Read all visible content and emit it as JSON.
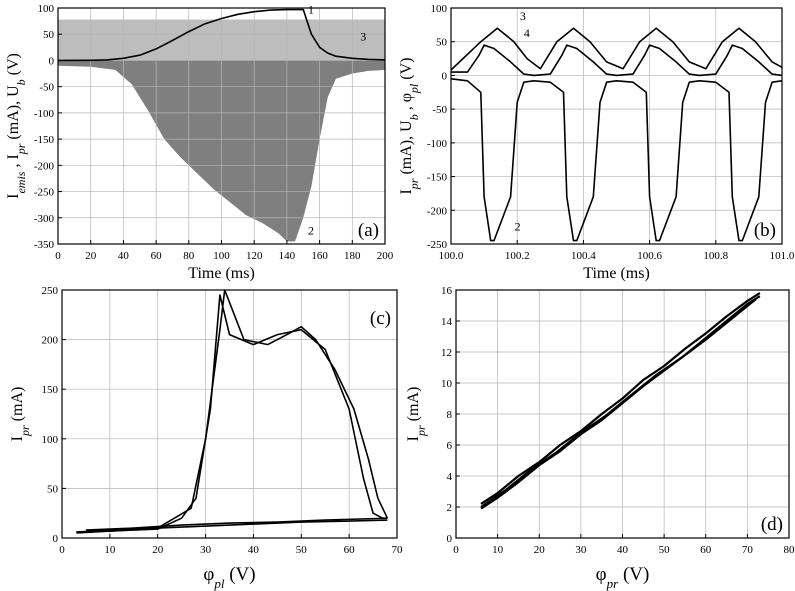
{
  "chart_data": [
    {
      "panel": "(a)",
      "type": "line",
      "ylabel": {
        "parts": [
          "I",
          "emis",
          " , I",
          "pr",
          " (mA), U",
          "b",
          " (V)"
        ]
      },
      "xlabel": "Time (ms)",
      "xlim": [
        0,
        200
      ],
      "ylim": [
        -350,
        100
      ],
      "xticks": [
        "0",
        "20",
        "40",
        "60",
        "80",
        "100",
        "120",
        "140",
        "160",
        "180",
        "200"
      ],
      "yticks": [
        "-350",
        "-300",
        "-250",
        "-200",
        "-150",
        "-100",
        "-50",
        "0",
        "50",
        "100"
      ],
      "grid": true,
      "annotations": [
        "1",
        "2",
        "3"
      ],
      "series": [
        {
          "x": [
            0,
            20,
            30,
            40,
            50,
            60,
            70,
            80,
            90,
            100,
            110,
            120,
            130,
            140,
            145,
            150,
            155,
            160,
            165,
            170,
            180,
            190,
            200
          ],
          "y": [
            0,
            0.3,
            1,
            4,
            10,
            22,
            38,
            55,
            70,
            80,
            88,
            93,
            96,
            97,
            97,
            97,
            50,
            25,
            14,
            8,
            4,
            2,
            1
          ]
        },
        {
          "x": [
            0,
            20,
            35,
            45,
            55,
            65,
            75,
            85,
            95,
            105,
            115,
            125,
            135,
            140,
            145,
            150,
            155,
            160,
            165,
            170,
            180,
            190,
            200
          ],
          "y": [
            -10,
            -12,
            -18,
            -45,
            -95,
            -150,
            -185,
            -215,
            -245,
            -270,
            -295,
            -310,
            -330,
            -345,
            -345,
            -300,
            -240,
            -150,
            -70,
            -35,
            -25,
            -20,
            -18
          ]
        },
        {
          "x": [
            0,
            200
          ],
          "y": [
            76,
            76
          ]
        }
      ]
    },
    {
      "panel": "(b)",
      "type": "line",
      "ylabel": {
        "parts": [
          "I",
          "pr",
          " (mA), U",
          "b",
          " , φ",
          "pl",
          " (V)"
        ]
      },
      "xlabel": "Time (ms)",
      "xlim": [
        100.0,
        101.0
      ],
      "ylim": [
        -250,
        100
      ],
      "xticks": [
        "100.0",
        "100.2",
        "100.4",
        "100.6",
        "100.8",
        "101.0"
      ],
      "yticks": [
        "-250",
        "-200",
        "-150",
        "-100",
        "-50",
        "0",
        "50",
        "100"
      ],
      "grid": true,
      "annotations": [
        "2",
        "3",
        "4"
      ],
      "series": [
        {
          "x": [
            100.0,
            100.05,
            100.09,
            100.1,
            100.12,
            100.13,
            100.18,
            100.2,
            100.22,
            100.25,
            100.3,
            100.34,
            100.35,
            100.37,
            100.38,
            100.43,
            100.45,
            100.47,
            100.5,
            100.55,
            100.59,
            100.6,
            100.62,
            100.63,
            100.68,
            100.7,
            100.72,
            100.75,
            100.8,
            100.84,
            100.85,
            100.87,
            100.88,
            100.93,
            100.95,
            100.97,
            101.0
          ],
          "y": [
            -5,
            -8,
            -25,
            -180,
            -245,
            -245,
            -180,
            -40,
            -10,
            -8,
            -10,
            -25,
            -180,
            -245,
            -245,
            -180,
            -40,
            -10,
            -8,
            -10,
            -25,
            -180,
            -245,
            -245,
            -180,
            -40,
            -10,
            -8,
            -10,
            -25,
            -180,
            -245,
            -245,
            -180,
            -40,
            -10,
            -8
          ]
        },
        {
          "x": [
            100.0,
            100.09,
            100.14,
            100.19,
            100.23,
            100.27,
            100.32,
            100.37,
            100.42,
            100.47,
            100.52,
            100.57,
            100.62,
            100.67,
            100.72,
            100.77,
            100.82,
            100.87,
            100.92,
            100.97,
            101.0
          ],
          "y": [
            8,
            50,
            70,
            50,
            25,
            10,
            50,
            70,
            50,
            20,
            10,
            50,
            70,
            50,
            20,
            10,
            50,
            70,
            50,
            20,
            12
          ]
        },
        {
          "x": [
            100.0,
            100.05,
            100.085,
            100.1,
            100.13,
            100.18,
            100.22,
            100.25,
            100.3,
            100.335,
            100.35,
            100.38,
            100.43,
            100.47,
            100.5,
            100.55,
            100.585,
            100.6,
            100.63,
            100.68,
            100.72,
            100.75,
            100.8,
            100.835,
            100.85,
            100.88,
            100.93,
            100.97,
            101.0
          ],
          "y": [
            5,
            5,
            30,
            45,
            40,
            20,
            2,
            0,
            2,
            30,
            45,
            40,
            20,
            2,
            0,
            2,
            30,
            45,
            40,
            20,
            2,
            0,
            2,
            30,
            45,
            40,
            20,
            2,
            0
          ]
        }
      ]
    },
    {
      "panel": "(c)",
      "type": "line",
      "ylabel": {
        "parts": [
          "I",
          "pr",
          " (mA)"
        ]
      },
      "xlabel": {
        "parts": [
          "φ",
          "pl",
          " (V)"
        ]
      },
      "xlim": [
        0,
        70
      ],
      "ylim": [
        0,
        250
      ],
      "xticks": [
        "0",
        "10",
        "20",
        "30",
        "40",
        "50",
        "60",
        "70"
      ],
      "yticks": [
        "0",
        "50",
        "100",
        "150",
        "200",
        "250"
      ],
      "grid": true,
      "series": [
        {
          "x": [
            3,
            10,
            20,
            27,
            30,
            33,
            34,
            38,
            43,
            47,
            50,
            53,
            57,
            61,
            64,
            66,
            68
          ],
          "y": [
            6,
            8,
            10,
            30,
            100,
            210,
            250,
            200,
            195,
            205,
            213,
            200,
            170,
            130,
            80,
            40,
            20
          ]
        },
        {
          "x": [
            3,
            10,
            20,
            25,
            28,
            31,
            33,
            35,
            40,
            45,
            50,
            55,
            60,
            63,
            65,
            67,
            68
          ],
          "y": [
            5,
            7,
            9,
            20,
            40,
            130,
            245,
            205,
            195,
            205,
            210,
            190,
            130,
            60,
            25,
            20,
            20
          ]
        },
        {
          "x": [
            68,
            60,
            50,
            40,
            30,
            20,
            10,
            3
          ],
          "y": [
            18,
            17,
            16,
            14,
            12,
            10,
            7,
            6
          ]
        },
        {
          "x": [
            68,
            55,
            45,
            35,
            25,
            15,
            5
          ],
          "y": [
            20,
            18,
            16,
            15,
            13,
            10,
            8
          ]
        }
      ]
    },
    {
      "panel": "(d)",
      "type": "line",
      "ylabel": {
        "parts": [
          "I",
          "pr",
          " (mA)"
        ]
      },
      "xlabel": {
        "parts": [
          "φ",
          "pr",
          " (V)"
        ]
      },
      "xlim": [
        0,
        80
      ],
      "ylim": [
        0,
        16
      ],
      "xticks": [
        "0",
        "10",
        "20",
        "30",
        "40",
        "50",
        "60",
        "70",
        "80"
      ],
      "yticks": [
        "0",
        "2",
        "4",
        "6",
        "8",
        "10",
        "12",
        "14",
        "16"
      ],
      "grid": true,
      "series": [
        {
          "x": [
            6,
            10,
            15,
            20,
            25,
            30,
            35,
            40,
            45,
            50,
            55,
            60,
            65,
            70,
            73
          ],
          "y": [
            1.9,
            2.6,
            3.6,
            4.7,
            5.6,
            6.7,
            7.6,
            8.7,
            9.8,
            10.8,
            11.8,
            12.9,
            14.0,
            15.1,
            15.6
          ]
        },
        {
          "x": [
            6,
            10,
            15,
            20,
            25,
            30,
            35,
            40,
            45,
            50,
            55,
            60,
            65,
            70,
            73
          ],
          "y": [
            2.2,
            2.9,
            4.0,
            4.9,
            6.0,
            6.9,
            8.0,
            9.0,
            10.2,
            11.1,
            12.2,
            13.2,
            14.3,
            15.3,
            15.8
          ]
        },
        {
          "x": [
            6,
            12,
            18,
            24,
            30,
            36,
            42,
            48,
            54,
            60,
            66,
            72
          ],
          "y": [
            2.0,
            3.1,
            4.4,
            5.5,
            6.8,
            7.9,
            9.2,
            10.5,
            11.6,
            12.8,
            14.1,
            15.4
          ]
        }
      ]
    }
  ]
}
